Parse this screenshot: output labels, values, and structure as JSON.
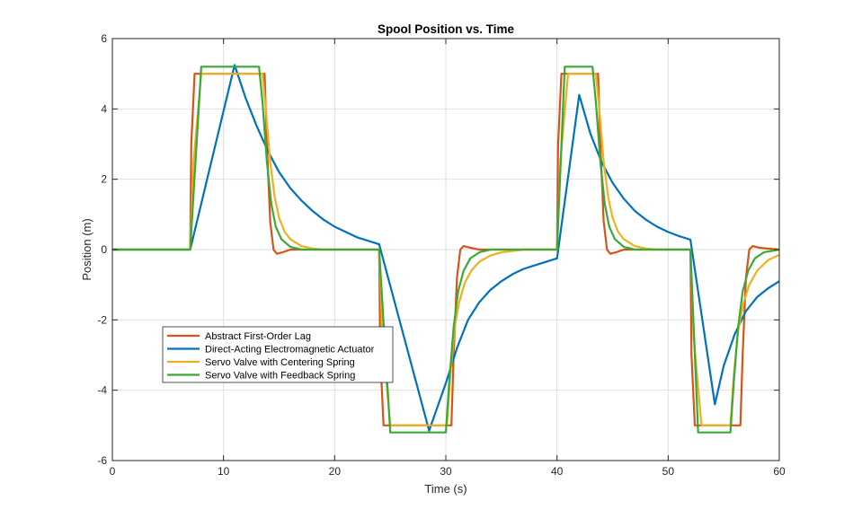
{
  "chart_data": {
    "type": "line",
    "title": "Spool Position vs. Time",
    "xlabel": "Time (s)",
    "ylabel": "Position (m)",
    "xlim": [
      0,
      60
    ],
    "ylim": [
      -6,
      6
    ],
    "xticks": [
      0,
      10,
      20,
      30,
      40,
      50,
      60
    ],
    "yticks": [
      -6,
      -4,
      -2,
      0,
      2,
      4,
      6
    ],
    "xtick_labels": [
      "0",
      "10",
      "20",
      "30",
      "40",
      "50",
      "60"
    ],
    "ytick_labels": [
      "-6",
      "-4",
      "-2",
      "0",
      "2",
      "4",
      "6"
    ],
    "grid": true,
    "legend_position": "lower-left",
    "series": [
      {
        "name": "Abstract First-Order Lag",
        "color": "#D95319",
        "points": [
          [
            0,
            0
          ],
          [
            7,
            0
          ],
          [
            7.1,
            3
          ],
          [
            7.4,
            5
          ],
          [
            13.7,
            5
          ],
          [
            13.9,
            3
          ],
          [
            14.2,
            0.8
          ],
          [
            14.5,
            0
          ],
          [
            14.8,
            -0.12
          ],
          [
            15.3,
            -0.08
          ],
          [
            16,
            0
          ],
          [
            24,
            0
          ],
          [
            24.1,
            -3
          ],
          [
            24.4,
            -5
          ],
          [
            30.5,
            -5
          ],
          [
            30.7,
            -3
          ],
          [
            31,
            -0.8
          ],
          [
            31.3,
            0
          ],
          [
            31.6,
            0.1
          ],
          [
            32.2,
            0.05
          ],
          [
            33,
            0
          ],
          [
            40,
            0
          ],
          [
            40.1,
            3
          ],
          [
            40.4,
            5
          ],
          [
            43.7,
            5
          ],
          [
            43.9,
            3
          ],
          [
            44.2,
            0.8
          ],
          [
            44.5,
            0
          ],
          [
            44.8,
            -0.12
          ],
          [
            45.3,
            -0.08
          ],
          [
            46,
            0
          ],
          [
            52,
            0
          ],
          [
            52.1,
            -3
          ],
          [
            52.4,
            -5
          ],
          [
            56.5,
            -5
          ],
          [
            56.7,
            -3
          ],
          [
            57,
            -0.8
          ],
          [
            57.3,
            0
          ],
          [
            57.6,
            0.1
          ],
          [
            58.2,
            0.05
          ],
          [
            60,
            0
          ]
        ]
      },
      {
        "name": "Direct-Acting Electromagnetic Actuator",
        "color": "#0072BD",
        "points": [
          [
            0,
            0
          ],
          [
            7,
            0
          ],
          [
            11,
            5.25
          ],
          [
            12,
            4.3
          ],
          [
            13,
            3.5
          ],
          [
            14,
            2.8
          ],
          [
            15,
            2.2
          ],
          [
            16,
            1.75
          ],
          [
            17,
            1.4
          ],
          [
            18,
            1.1
          ],
          [
            19,
            0.85
          ],
          [
            20,
            0.65
          ],
          [
            21,
            0.5
          ],
          [
            22,
            0.35
          ],
          [
            23,
            0.25
          ],
          [
            24,
            0.15
          ],
          [
            28.5,
            -5.15
          ],
          [
            30,
            -3.8
          ],
          [
            31,
            -2.8
          ],
          [
            32,
            -2.0
          ],
          [
            33,
            -1.5
          ],
          [
            34,
            -1.15
          ],
          [
            35,
            -0.9
          ],
          [
            36,
            -0.7
          ],
          [
            37,
            -0.55
          ],
          [
            38,
            -0.45
          ],
          [
            39,
            -0.35
          ],
          [
            40,
            -0.25
          ],
          [
            42,
            4.4
          ],
          [
            43,
            3.3
          ],
          [
            44,
            2.5
          ],
          [
            45,
            1.9
          ],
          [
            46,
            1.45
          ],
          [
            47,
            1.1
          ],
          [
            48,
            0.85
          ],
          [
            49,
            0.65
          ],
          [
            50,
            0.5
          ],
          [
            51,
            0.38
          ],
          [
            52,
            0.28
          ],
          [
            54.2,
            -4.4
          ],
          [
            55,
            -3.3
          ],
          [
            56,
            -2.4
          ],
          [
            57,
            -1.75
          ],
          [
            58,
            -1.35
          ],
          [
            59,
            -1.1
          ],
          [
            60,
            -0.9
          ]
        ]
      },
      {
        "name": "Servo Valve with Centering Spring",
        "color": "#EDB120",
        "points": [
          [
            0,
            0
          ],
          [
            7,
            0
          ],
          [
            7.3,
            2.5
          ],
          [
            8,
            5
          ],
          [
            13.5,
            5
          ],
          [
            13.8,
            4
          ],
          [
            14.2,
            2.5
          ],
          [
            14.6,
            1.5
          ],
          [
            15,
            0.9
          ],
          [
            15.5,
            0.5
          ],
          [
            16,
            0.3
          ],
          [
            17,
            0.1
          ],
          [
            18,
            0.03
          ],
          [
            19,
            0
          ],
          [
            24,
            0
          ],
          [
            24.3,
            -2.5
          ],
          [
            25,
            -5
          ],
          [
            30.1,
            -5
          ],
          [
            30.4,
            -3.6
          ],
          [
            30.8,
            -2.2
          ],
          [
            31.2,
            -1.5
          ],
          [
            31.7,
            -0.95
          ],
          [
            32.3,
            -0.6
          ],
          [
            33,
            -0.35
          ],
          [
            34,
            -0.17
          ],
          [
            35,
            -0.08
          ],
          [
            37,
            0
          ],
          [
            40,
            0
          ],
          [
            40.3,
            2.5
          ],
          [
            41,
            5
          ],
          [
            43.5,
            5
          ],
          [
            43.8,
            4
          ],
          [
            44.2,
            2.5
          ],
          [
            44.6,
            1.5
          ],
          [
            45,
            0.9
          ],
          [
            45.5,
            0.5
          ],
          [
            46,
            0.3
          ],
          [
            47,
            0.1
          ],
          [
            48,
            0.03
          ],
          [
            49,
            0
          ],
          [
            52,
            0
          ],
          [
            52.3,
            -2.5
          ],
          [
            53,
            -5
          ],
          [
            55.6,
            -5
          ],
          [
            55.9,
            -3.6
          ],
          [
            56.3,
            -2.3
          ],
          [
            56.8,
            -1.5
          ],
          [
            57.3,
            -1.0
          ],
          [
            58,
            -0.6
          ],
          [
            59,
            -0.3
          ],
          [
            60,
            -0.15
          ]
        ]
      },
      {
        "name": "Servo Valve with Feedback Spring",
        "color": "#3BA935",
        "points": [
          [
            0,
            0
          ],
          [
            7,
            0
          ],
          [
            8,
            5.2
          ],
          [
            13.2,
            5.2
          ],
          [
            13.5,
            4.2
          ],
          [
            13.9,
            2.5
          ],
          [
            14.3,
            1.3
          ],
          [
            14.7,
            0.65
          ],
          [
            15.2,
            0.3
          ],
          [
            16,
            0.08
          ],
          [
            17,
            0
          ],
          [
            24,
            0
          ],
          [
            25,
            -5.2
          ],
          [
            30,
            -5.2
          ],
          [
            30.3,
            -3.8
          ],
          [
            30.7,
            -2.2
          ],
          [
            31.1,
            -1.2
          ],
          [
            31.6,
            -0.6
          ],
          [
            32.2,
            -0.25
          ],
          [
            33,
            -0.08
          ],
          [
            34,
            0
          ],
          [
            40,
            0
          ],
          [
            40.7,
            5.2
          ],
          [
            43.2,
            5.2
          ],
          [
            43.5,
            4.2
          ],
          [
            43.9,
            2.5
          ],
          [
            44.3,
            1.3
          ],
          [
            44.7,
            0.65
          ],
          [
            45.2,
            0.3
          ],
          [
            46,
            0.08
          ],
          [
            47,
            0
          ],
          [
            52,
            0
          ],
          [
            52.7,
            -5.2
          ],
          [
            55.6,
            -5.2
          ],
          [
            55.9,
            -3.8
          ],
          [
            56.3,
            -2.2
          ],
          [
            56.7,
            -1.2
          ],
          [
            57.2,
            -0.6
          ],
          [
            57.8,
            -0.25
          ],
          [
            58.6,
            -0.08
          ],
          [
            60,
            0
          ]
        ]
      }
    ]
  }
}
